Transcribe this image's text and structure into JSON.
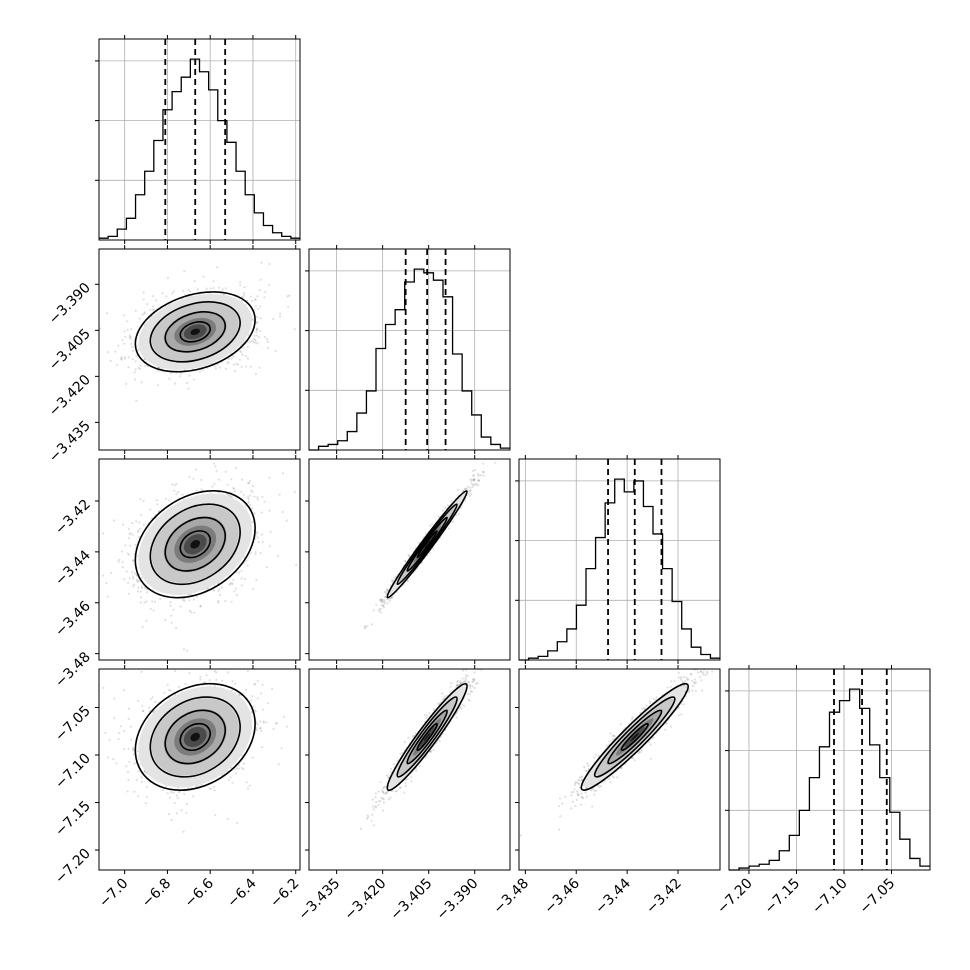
{
  "chart_data": {
    "type": "corner",
    "title": "",
    "grid": true,
    "parameters": [
      {
        "index": 0,
        "range": [
          -7.12,
          -6.18
        ],
        "ticks": [
          -7.0,
          -6.8,
          -6.6,
          -6.4,
          -6.2
        ],
        "tick_labels": [
          "−7.0",
          "−6.8",
          "−6.6",
          "−6.4",
          "−6.2"
        ],
        "quantiles": {
          "q16": -6.81,
          "median": -6.67,
          "q84": -6.53
        },
        "mean": -6.67,
        "sigma": 0.14,
        "histogram": [
          0.01,
          0.02,
          0.06,
          0.12,
          0.25,
          0.38,
          0.55,
          0.72,
          0.82,
          0.9,
          1.0,
          0.93,
          0.83,
          0.66,
          0.54,
          0.38,
          0.25,
          0.15,
          0.08,
          0.04,
          0.02,
          0.01
        ]
      },
      {
        "index": 1,
        "range": [
          -3.444,
          -3.3785
        ],
        "ticks": [
          -3.435,
          -3.42,
          -3.405,
          -3.39
        ],
        "tick_labels": [
          "−3.435",
          "−3.420",
          "−3.405",
          "−3.390"
        ],
        "quantiles": {
          "q16": -3.4125,
          "median": -3.4055,
          "q84": -3.3995
        },
        "mean": -3.4055,
        "sigma": 0.0065,
        "histogram": [
          0.0,
          0.02,
          0.03,
          0.05,
          0.1,
          0.2,
          0.32,
          0.55,
          0.68,
          0.76,
          0.91,
          0.98,
          0.96,
          0.92,
          0.83,
          0.52,
          0.32,
          0.19,
          0.07,
          0.03,
          0.01
        ]
      },
      {
        "index": 2,
        "range": [
          -3.4825,
          -3.4035
        ],
        "ticks": [
          -3.48,
          -3.46,
          -3.44,
          -3.42
        ],
        "tick_labels": [
          "−3.48",
          "−3.46",
          "−3.44",
          "−3.42"
        ],
        "quantiles": {
          "q16": -3.4475,
          "median": -3.437,
          "q84": -3.4265
        },
        "mean": -3.437,
        "sigma": 0.0105,
        "histogram": [
          0.0,
          0.01,
          0.02,
          0.05,
          0.1,
          0.17,
          0.3,
          0.5,
          0.67,
          0.86,
          0.99,
          0.92,
          0.98,
          0.84,
          0.69,
          0.5,
          0.32,
          0.17,
          0.07,
          0.03,
          0.01
        ]
      },
      {
        "index": 3,
        "range": [
          -7.221,
          -7.0095
        ],
        "ticks": [
          -7.2,
          -7.15,
          -7.1,
          -7.05
        ],
        "tick_labels": [
          "−7.20",
          "−7.15",
          "−7.10",
          "−7.05"
        ],
        "quantiles": {
          "q16": -7.1105,
          "median": -7.081,
          "q84": -7.055
        },
        "mean": -7.081,
        "sigma": 0.028,
        "histogram": [
          0.0,
          0.01,
          0.02,
          0.03,
          0.05,
          0.1,
          0.18,
          0.31,
          0.48,
          0.64,
          0.82,
          0.88,
          0.94,
          0.84,
          0.65,
          0.48,
          0.3,
          0.16,
          0.06,
          0.02
        ]
      }
    ],
    "correlations": [
      {
        "row": 1,
        "col": 0,
        "rho": 0.3
      },
      {
        "row": 2,
        "col": 0,
        "rho": 0.3
      },
      {
        "row": 2,
        "col": 1,
        "rho": 0.985
      },
      {
        "row": 3,
        "col": 0,
        "rho": 0.25
      },
      {
        "row": 3,
        "col": 1,
        "rho": 0.955
      },
      {
        "row": 3,
        "col": 2,
        "rho": 0.95
      }
    ],
    "contour_levels_sigma": [
      0.5,
      1.0,
      1.5,
      2.0
    ]
  }
}
